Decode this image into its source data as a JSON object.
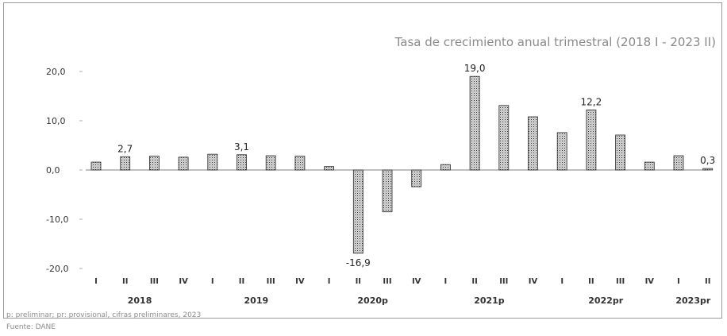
{
  "header": {
    "title": "",
    "subtitle": "Tasa de crecimiento anual trimestral (2018 I - 2023 II)"
  },
  "footer": {
    "note_1": "p: preliminar; pr: provisional, cifras preliminares, 2023",
    "note_2": "Fuente: DANE",
    "credit": ""
  },
  "chart_data": {
    "type": "bar",
    "title": "",
    "subtitle": "Tasa de crecimiento anual trimestral (2018 I - 2023 II)",
    "xlabel": "",
    "ylabel": "",
    "ylim": [
      -20,
      20
    ],
    "yticks": [
      "20,0",
      "10,0",
      "0,0",
      "-10,0",
      "-20,0"
    ],
    "grid": false,
    "legend": "none",
    "colors": {
      "bar": "#8c8c8c",
      "bar_edge": "#2a2a2a"
    },
    "categories": [
      "I",
      "II",
      "III",
      "IV",
      "I",
      "II",
      "III",
      "IV",
      "I",
      "II",
      "III",
      "IV",
      "I",
      "II",
      "III",
      "IV",
      "I",
      "II",
      "III",
      "IV",
      "I",
      "II"
    ],
    "years": [
      {
        "label": "2018",
        "count": 4
      },
      {
        "label": "2019",
        "count": 4
      },
      {
        "label": "2020p",
        "count": 4
      },
      {
        "label": "2021p",
        "count": 4
      },
      {
        "label": "2022pr",
        "count": 4
      },
      {
        "label": "2023pr",
        "count": 2
      }
    ],
    "values": [
      1.6,
      2.7,
      2.8,
      2.6,
      3.2,
      3.1,
      2.9,
      2.8,
      0.7,
      -16.9,
      -8.5,
      -3.4,
      1.1,
      19.0,
      13.1,
      10.8,
      7.6,
      12.2,
      7.1,
      1.6,
      2.9,
      0.3
    ],
    "data_labels": [
      {
        "index": 1,
        "text": "2,7"
      },
      {
        "index": 5,
        "text": "3,1"
      },
      {
        "index": 9,
        "text": "-16,9"
      },
      {
        "index": 13,
        "text": "19,0"
      },
      {
        "index": 17,
        "text": "12,2"
      },
      {
        "index": 21,
        "text": "0,3"
      }
    ]
  }
}
